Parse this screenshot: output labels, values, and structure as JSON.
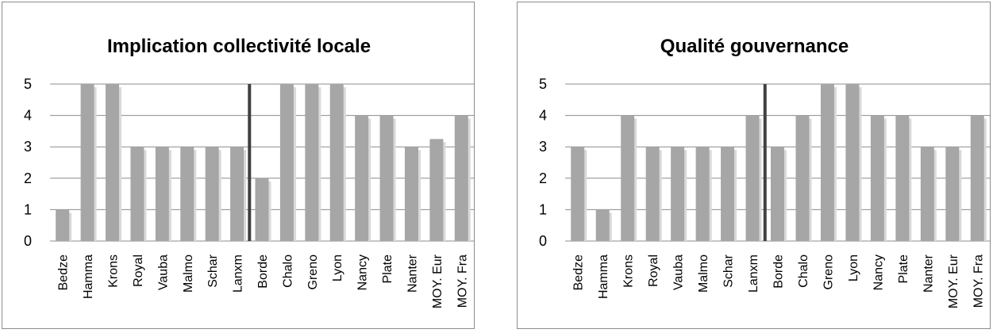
{
  "colors": {
    "bar": "#a6a6a6",
    "bar_shadow": "#d9d9d9",
    "grid": "#8c8c8c",
    "marker": "#404040",
    "border": "#8c8c8c"
  },
  "chart_data": [
    {
      "type": "bar",
      "title": "Implication collectivité locale",
      "categories": [
        "Bedze",
        "Hamma",
        "Krons",
        "Royal",
        "Vauba",
        "Malmo",
        "Schar",
        "Lanxm",
        "Borde",
        "Chalo",
        "Greno",
        "Lyon",
        "Nancy",
        "Plate",
        "Nanter",
        "MOY. Eur",
        "MOY. Fra"
      ],
      "values": [
        1,
        5,
        5,
        3,
        3,
        3,
        3,
        3,
        2,
        5,
        5,
        5,
        4,
        4,
        3,
        3.25,
        4
      ],
      "ylim": [
        0,
        5
      ],
      "yticks": [
        0,
        1,
        2,
        3,
        4,
        5
      ],
      "grid": true,
      "legend": "none",
      "divider_after_category": "Lanxm"
    },
    {
      "type": "bar",
      "title": "Qualité gouvernance",
      "categories": [
        "Bedze",
        "Hamma",
        "Krons",
        "Royal",
        "Vauba",
        "Malmo",
        "Schar",
        "Lanxm",
        "Borde",
        "Chalo",
        "Greno",
        "Lyon",
        "Nancy",
        "Plate",
        "Nanter",
        "MOY. Eur",
        "MOY. Fra"
      ],
      "values": [
        3,
        1,
        4,
        3,
        3,
        3,
        3,
        4,
        3,
        4,
        5,
        5,
        4,
        4,
        3,
        3,
        4
      ],
      "ylim": [
        0,
        5
      ],
      "yticks": [
        0,
        1,
        2,
        3,
        4,
        5
      ],
      "grid": true,
      "legend": "none",
      "divider_after_category": "Lanxm"
    }
  ]
}
